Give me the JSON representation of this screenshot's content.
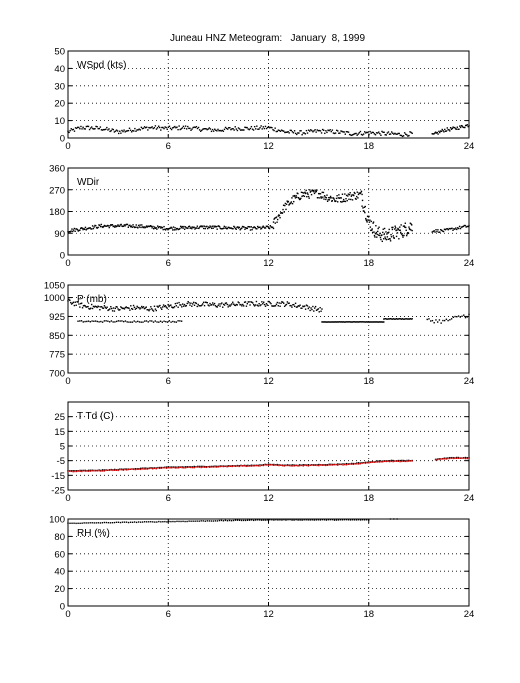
{
  "title": "Juneau HNZ Meteogram:   January  8, 1999",
  "chart_data": [
    {
      "type": "scatter",
      "label": "WSpd (kts)",
      "ylim": [
        0,
        50
      ],
      "yticks": [
        0,
        10,
        20,
        30,
        40,
        50
      ],
      "xlim": [
        0,
        24
      ],
      "xticks": [
        0,
        6,
        12,
        18,
        24
      ],
      "grid": true,
      "segments": [
        {
          "x0": 0.0,
          "x1": 20.6,
          "color": "#000000",
          "knots": [
            [
              0,
              3.5
            ],
            [
              0.8,
              6
            ],
            [
              2,
              5.5
            ],
            [
              3,
              3.5
            ],
            [
              4,
              5
            ],
            [
              5,
              6
            ],
            [
              6,
              5.5
            ],
            [
              7,
              6
            ],
            [
              8,
              5
            ],
            [
              9,
              4.5
            ],
            [
              10,
              5.5
            ],
            [
              11,
              5.5
            ],
            [
              12,
              6
            ],
            [
              13,
              3.5
            ],
            [
              14,
              3
            ],
            [
              15,
              4
            ],
            [
              16,
              3.5
            ],
            [
              17,
              2.5
            ],
            [
              18,
              3
            ],
            [
              19,
              2.5
            ],
            [
              20,
              2
            ],
            [
              20.6,
              2.5
            ]
          ],
          "noise": 1.2,
          "n": 320
        },
        {
          "x0": 21.8,
          "x1": 24.0,
          "color": "#000000",
          "knots": [
            [
              21.8,
              1.5
            ],
            [
              22.5,
              4.5
            ],
            [
              23.2,
              5.5
            ],
            [
              24,
              7.5
            ]
          ],
          "noise": 1.0,
          "n": 45
        }
      ]
    },
    {
      "type": "scatter",
      "label": "WDir",
      "ylim": [
        0,
        360
      ],
      "yticks": [
        0,
        90,
        180,
        270,
        360
      ],
      "xlim": [
        0,
        24
      ],
      "xticks": [
        0,
        6,
        12,
        18,
        24
      ],
      "grid": true,
      "segments": [
        {
          "x0": 0.0,
          "x1": 12.3,
          "color": "#000000",
          "knots": [
            [
              0,
              100
            ],
            [
              2,
              120
            ],
            [
              4,
              120
            ],
            [
              6,
              110
            ],
            [
              8,
              115
            ],
            [
              10,
              112
            ],
            [
              11,
              110
            ],
            [
              12.3,
              115
            ]
          ],
          "noise": 7,
          "n": 260
        },
        {
          "x0": 12.3,
          "x1": 17.6,
          "color": "#000000",
          "knots": [
            [
              12.3,
              130
            ],
            [
              13,
              200
            ],
            [
              13.5,
              230
            ],
            [
              14,
              250
            ],
            [
              15,
              255
            ],
            [
              15.5,
              240
            ],
            [
              16,
              230
            ],
            [
              17,
              245
            ],
            [
              17.6,
              250
            ]
          ],
          "noise": 18,
          "n": 150
        },
        {
          "x0": 17.6,
          "x1": 20.6,
          "color": "#000000",
          "knots": [
            [
              17.6,
              230
            ],
            [
              18,
              140
            ],
            [
              18.5,
              90
            ],
            [
              19,
              80
            ],
            [
              19.5,
              90
            ],
            [
              20,
              100
            ],
            [
              20.6,
              120
            ]
          ],
          "noise": 30,
          "n": 110
        },
        {
          "x0": 21.8,
          "x1": 24.0,
          "color": "#000000",
          "knots": [
            [
              21.8,
              100
            ],
            [
              22.5,
              100
            ],
            [
              23.2,
              110
            ],
            [
              24,
              120
            ]
          ],
          "noise": 6,
          "n": 40
        }
      ]
    },
    {
      "type": "scatter",
      "label": "P (mb)",
      "ylim": [
        700,
        1050
      ],
      "yticks": [
        700,
        775,
        850,
        925,
        1000,
        1050
      ],
      "xlim": [
        0,
        24
      ],
      "xticks": [
        0,
        6,
        12,
        18,
        24
      ],
      "grid": true,
      "segments": [
        {
          "x0": 0.0,
          "x1": 15.2,
          "color": "#000000",
          "knots": [
            [
              0,
              985
            ],
            [
              1,
              965
            ],
            [
              2,
              960
            ],
            [
              3,
              955
            ],
            [
              4,
              960
            ],
            [
              5,
              955
            ],
            [
              6,
              965
            ],
            [
              7,
              975
            ],
            [
              9,
              970
            ],
            [
              11,
              975
            ],
            [
              13,
              975
            ],
            [
              14,
              965
            ],
            [
              15.2,
              950
            ]
          ],
          "noise": 10,
          "n": 280
        },
        {
          "x0": 0.6,
          "x1": 6.8,
          "color": "#000000",
          "knots": [
            [
              0.6,
              905
            ],
            [
              3,
              905
            ],
            [
              6.8,
              905
            ]
          ],
          "noise": 3,
          "n": 60
        },
        {
          "x0": 15.2,
          "x1": 18.9,
          "color": "#000000",
          "knots": [
            [
              15.2,
              903
            ],
            [
              18.9,
              903
            ]
          ],
          "noise": 0.5,
          "n": 70
        },
        {
          "x0": 18.9,
          "x1": 20.6,
          "color": "#000000",
          "knots": [
            [
              18.9,
              915
            ],
            [
              20.6,
              915
            ]
          ],
          "noise": 1,
          "n": 30
        },
        {
          "x0": 21.5,
          "x1": 24.0,
          "color": "#000000",
          "knots": [
            [
              21.5,
              910
            ],
            [
              22.5,
              905
            ],
            [
              23.5,
              925
            ],
            [
              24,
              930
            ]
          ],
          "noise": 8,
          "n": 25
        }
      ]
    },
    {
      "type": "line",
      "label": "T Td (C)",
      "ylim": [
        -25,
        35
      ],
      "yticks": [
        -25,
        -15,
        -5,
        5,
        15,
        25
      ],
      "xlim": [
        0,
        24
      ],
      "xticks": [
        0,
        6,
        12,
        18,
        24
      ],
      "grid": true,
      "segments": [
        {
          "x0": 0.0,
          "x1": 20.6,
          "color": "#000000",
          "knots": [
            [
              0,
              -12
            ],
            [
              2,
              -11.5
            ],
            [
              4,
              -10.5
            ],
            [
              6,
              -9.5
            ],
            [
              8,
              -9
            ],
            [
              10,
              -8.5
            ],
            [
              11.5,
              -8
            ],
            [
              12,
              -7.5
            ],
            [
              13,
              -8
            ],
            [
              14,
              -8
            ],
            [
              16,
              -7.5
            ],
            [
              17,
              -7
            ],
            [
              18,
              -6
            ],
            [
              19,
              -5
            ],
            [
              20.6,
              -5
            ]
          ],
          "noise": 0.2,
          "n": 200
        },
        {
          "x0": 0.0,
          "x1": 20.6,
          "color": "#d00000",
          "knots": [
            [
              0,
              -12.4
            ],
            [
              2,
              -11.9
            ],
            [
              4,
              -10.9
            ],
            [
              6,
              -9.9
            ],
            [
              8,
              -9.4
            ],
            [
              10,
              -8.9
            ],
            [
              11.5,
              -8.4
            ],
            [
              12,
              -7.9
            ],
            [
              13,
              -8.4
            ],
            [
              14,
              -8.4
            ],
            [
              16,
              -7.9
            ],
            [
              17,
              -7.4
            ],
            [
              18,
              -6.4
            ],
            [
              19,
              -5.4
            ],
            [
              20.6,
              -5.4
            ]
          ],
          "noise": 0.25,
          "n": 200
        },
        {
          "x0": 22.0,
          "x1": 24.0,
          "color": "#000000",
          "knots": [
            [
              22,
              -4
            ],
            [
              23,
              -3
            ],
            [
              24,
              -3
            ]
          ],
          "noise": 0.2,
          "n": 20
        },
        {
          "x0": 22.0,
          "x1": 24.0,
          "color": "#d00000",
          "knots": [
            [
              22,
              -4.4
            ],
            [
              23,
              -3.4
            ],
            [
              24,
              -3.4
            ]
          ],
          "noise": 0.2,
          "n": 20
        }
      ]
    },
    {
      "type": "line",
      "label": "RH (%)",
      "ylim": [
        0,
        100
      ],
      "yticks": [
        0,
        20,
        40,
        60,
        80,
        100
      ],
      "xlim": [
        0,
        24
      ],
      "xticks": [
        0,
        6,
        12,
        18,
        24
      ],
      "grid": true,
      "segments": [
        {
          "x0": 0.0,
          "x1": 18.0,
          "color": "#000000",
          "knots": [
            [
              0,
              95
            ],
            [
              3,
              96
            ],
            [
              6,
              97
            ],
            [
              9,
              98
            ],
            [
              12,
              99
            ],
            [
              15,
              99
            ],
            [
              18,
              99
            ]
          ],
          "noise": 0.3,
          "n": 150
        },
        {
          "x0": 19.3,
          "x1": 19.7,
          "color": "#000000",
          "knots": [
            [
              19.3,
              100
            ],
            [
              19.7,
              100
            ]
          ],
          "noise": 0,
          "n": 3
        }
      ]
    }
  ]
}
